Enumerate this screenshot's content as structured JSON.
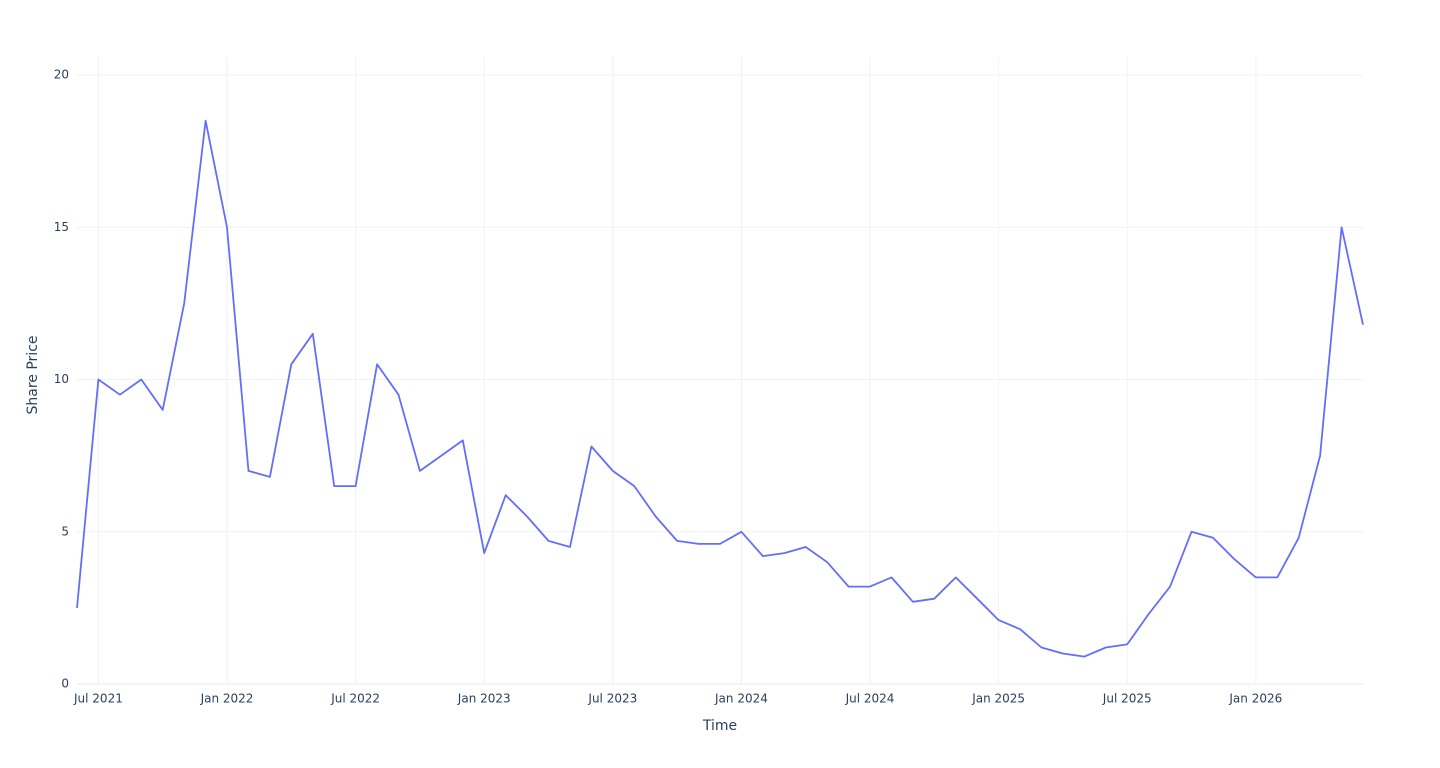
{
  "chart_data": {
    "type": "line",
    "x_label": "Time",
    "y_label": "Share Price",
    "x": [
      "2021-06",
      "2021-07",
      "2021-08",
      "2021-09",
      "2021-10",
      "2021-11",
      "2021-12",
      "2022-01",
      "2022-02",
      "2022-03",
      "2022-04",
      "2022-05",
      "2022-06",
      "2022-07",
      "2022-08",
      "2022-09",
      "2022-10",
      "2022-11",
      "2022-12",
      "2023-01",
      "2023-02",
      "2023-03",
      "2023-04",
      "2023-05",
      "2023-06",
      "2023-07",
      "2023-08",
      "2023-09",
      "2023-10",
      "2023-11",
      "2023-12",
      "2024-01",
      "2024-02",
      "2024-03",
      "2024-04",
      "2024-05",
      "2024-06",
      "2024-07",
      "2024-08",
      "2024-09",
      "2024-10",
      "2024-11",
      "2024-12",
      "2025-01",
      "2025-02",
      "2025-03",
      "2025-04",
      "2025-05",
      "2025-06",
      "2025-07",
      "2025-08",
      "2025-09",
      "2025-10",
      "2025-11",
      "2025-12",
      "2026-01",
      "2026-02",
      "2026-03",
      "2026-04",
      "2026-05",
      "2026-06"
    ],
    "series": [
      {
        "name": "Share Price",
        "color": "#636efa",
        "values": [
          2.5,
          10,
          9.5,
          10,
          9,
          12.5,
          18.5,
          15,
          7,
          6.8,
          10.5,
          11.5,
          6.5,
          6.5,
          10.5,
          9.5,
          7,
          7.5,
          8,
          4.3,
          6.2,
          5.5,
          4.7,
          4.5,
          7.8,
          7,
          6.5,
          5.5,
          4.7,
          4.6,
          4.6,
          5,
          4.2,
          4.3,
          4.5,
          4,
          3.2,
          3.2,
          3.5,
          2.7,
          2.8,
          3.5,
          2.8,
          2.1,
          1.8,
          1.2,
          1,
          0.9,
          1.2,
          1.3,
          2.3,
          3.2,
          5,
          4.8,
          4.1,
          3.5,
          3.5,
          4.8,
          7.5,
          15,
          11.8
        ]
      }
    ],
    "xlim": [
      "2021-06",
      "2026-06"
    ],
    "xticks": [
      {
        "value": "2021-07",
        "label": "Jul 2021"
      },
      {
        "value": "2022-01",
        "label": "Jan 2022"
      },
      {
        "value": "2022-07",
        "label": "Jul 2022"
      },
      {
        "value": "2023-01",
        "label": "Jan 2023"
      },
      {
        "value": "2023-07",
        "label": "Jul 2023"
      },
      {
        "value": "2024-01",
        "label": "Jan 2024"
      },
      {
        "value": "2024-07",
        "label": "Jul 2024"
      },
      {
        "value": "2025-01",
        "label": "Jan 2025"
      },
      {
        "value": "2025-07",
        "label": "Jul 2025"
      },
      {
        "value": "2026-01",
        "label": "Jan 2026"
      }
    ],
    "ylim": [
      0,
      20
    ],
    "yticks": [
      0,
      5,
      10,
      15,
      20
    ],
    "grid": true
  }
}
